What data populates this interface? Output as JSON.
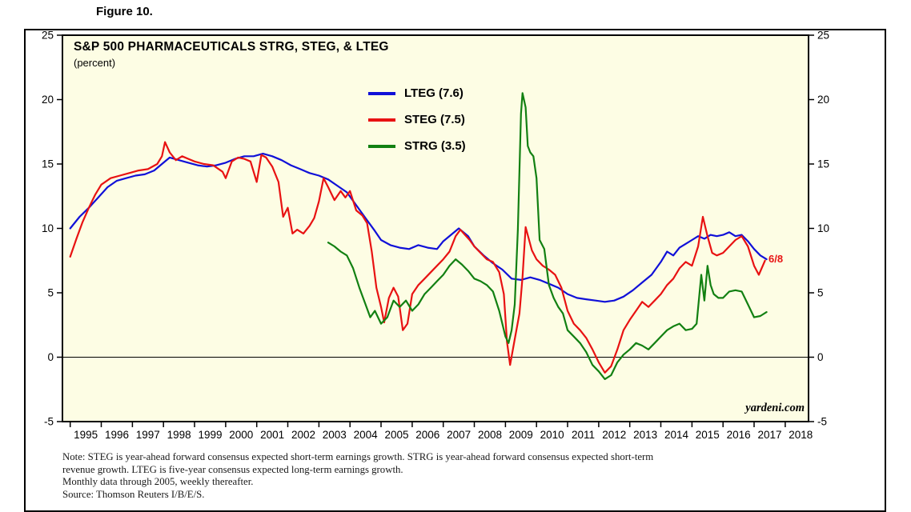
{
  "figure_label": "Figure 10.",
  "chart": {
    "title": "S&P 500 PHARMACEUTICALS STRG, STEG, & LTEG",
    "subtitle": "(percent)",
    "annotation": "6/8",
    "watermark": "yardeni.com"
  },
  "notes": {
    "lines": [
      "Note: STEG is year-ahead forward consensus expected short-term earnings growth. STRG is year-ahead forward consensus expected short-term",
      "revenue growth. LTEG is five-year consensus expected long-term earnings growth.",
      "Monthly data through 2005, weekly thereafter.",
      "Source: Thomson Reuters I/B/E/S."
    ]
  },
  "chart_data": {
    "type": "line",
    "title": "S&P 500 PHARMACEUTICALS STRG, STEG, & LTEG",
    "xlabel": "",
    "ylabel": "percent",
    "ylim": [
      -5,
      25
    ],
    "ytick_step": 5,
    "xlim": [
      1994.75,
      2018.75
    ],
    "xticks_years": [
      1995,
      1996,
      1997,
      1998,
      1999,
      2000,
      2001,
      2002,
      2003,
      2004,
      2005,
      2006,
      2007,
      2008,
      2009,
      2010,
      2011,
      2012,
      2013,
      2014,
      2015,
      2016,
      2017,
      2018
    ],
    "grid": false,
    "zero_line": true,
    "plot_bg": "#FDFDE4",
    "legend_position": "top-center-inside",
    "series": [
      {
        "id": "lteg",
        "name": "LTEG (7.6)",
        "color": "#1010D8",
        "last_value": 7.6,
        "points": [
          [
            1995.0,
            10.0
          ],
          [
            1995.3,
            10.9
          ],
          [
            1995.6,
            11.6
          ],
          [
            1995.9,
            12.4
          ],
          [
            1996.2,
            13.2
          ],
          [
            1996.5,
            13.7
          ],
          [
            1996.8,
            13.9
          ],
          [
            1997.1,
            14.1
          ],
          [
            1997.4,
            14.2
          ],
          [
            1997.7,
            14.5
          ],
          [
            1998.0,
            15.1
          ],
          [
            1998.2,
            15.5
          ],
          [
            1998.5,
            15.3
          ],
          [
            1998.8,
            15.1
          ],
          [
            1999.1,
            14.9
          ],
          [
            1999.4,
            14.8
          ],
          [
            1999.7,
            14.9
          ],
          [
            2000.0,
            15.1
          ],
          [
            2000.3,
            15.4
          ],
          [
            2000.6,
            15.6
          ],
          [
            2000.9,
            15.6
          ],
          [
            2001.2,
            15.8
          ],
          [
            2001.5,
            15.6
          ],
          [
            2001.8,
            15.3
          ],
          [
            2002.1,
            14.9
          ],
          [
            2002.4,
            14.6
          ],
          [
            2002.7,
            14.3
          ],
          [
            2003.0,
            14.1
          ],
          [
            2003.3,
            13.8
          ],
          [
            2003.6,
            13.3
          ],
          [
            2003.9,
            12.8
          ],
          [
            2004.2,
            11.8
          ],
          [
            2004.5,
            10.8
          ],
          [
            2004.8,
            9.8
          ],
          [
            2005.0,
            9.1
          ],
          [
            2005.3,
            8.7
          ],
          [
            2005.6,
            8.5
          ],
          [
            2005.9,
            8.4
          ],
          [
            2006.2,
            8.7
          ],
          [
            2006.5,
            8.5
          ],
          [
            2006.8,
            8.4
          ],
          [
            2007.0,
            9.0
          ],
          [
            2007.3,
            9.6
          ],
          [
            2007.5,
            10.0
          ],
          [
            2007.8,
            9.4
          ],
          [
            2008.0,
            8.6
          ],
          [
            2008.3,
            7.9
          ],
          [
            2008.6,
            7.3
          ],
          [
            2008.9,
            6.8
          ],
          [
            2009.2,
            6.1
          ],
          [
            2009.5,
            6.0
          ],
          [
            2009.8,
            6.2
          ],
          [
            2010.1,
            6.0
          ],
          [
            2010.4,
            5.7
          ],
          [
            2010.7,
            5.4
          ],
          [
            2011.0,
            4.9
          ],
          [
            2011.3,
            4.6
          ],
          [
            2011.6,
            4.5
          ],
          [
            2011.9,
            4.4
          ],
          [
            2012.2,
            4.3
          ],
          [
            2012.5,
            4.4
          ],
          [
            2012.8,
            4.7
          ],
          [
            2013.1,
            5.2
          ],
          [
            2013.4,
            5.8
          ],
          [
            2013.7,
            6.4
          ],
          [
            2014.0,
            7.4
          ],
          [
            2014.2,
            8.2
          ],
          [
            2014.4,
            7.9
          ],
          [
            2014.6,
            8.5
          ],
          [
            2014.8,
            8.8
          ],
          [
            2015.0,
            9.1
          ],
          [
            2015.2,
            9.4
          ],
          [
            2015.4,
            9.2
          ],
          [
            2015.6,
            9.5
          ],
          [
            2015.8,
            9.4
          ],
          [
            2016.0,
            9.5
          ],
          [
            2016.2,
            9.7
          ],
          [
            2016.4,
            9.4
          ],
          [
            2016.6,
            9.5
          ],
          [
            2016.8,
            9.0
          ],
          [
            2017.0,
            8.4
          ],
          [
            2017.2,
            7.9
          ],
          [
            2017.4,
            7.6
          ]
        ]
      },
      {
        "id": "steg",
        "name": "STEG (7.5)",
        "color": "#E81212",
        "last_value": 7.5,
        "points": [
          [
            1995.0,
            7.8
          ],
          [
            1995.2,
            9.2
          ],
          [
            1995.4,
            10.5
          ],
          [
            1995.6,
            11.6
          ],
          [
            1995.8,
            12.6
          ],
          [
            1996.0,
            13.4
          ],
          [
            1996.3,
            13.9
          ],
          [
            1996.6,
            14.1
          ],
          [
            1996.9,
            14.3
          ],
          [
            1997.2,
            14.5
          ],
          [
            1997.5,
            14.6
          ],
          [
            1997.8,
            15.0
          ],
          [
            1997.95,
            15.6
          ],
          [
            1998.05,
            16.7
          ],
          [
            1998.2,
            15.9
          ],
          [
            1998.4,
            15.3
          ],
          [
            1998.6,
            15.6
          ],
          [
            1998.8,
            15.4
          ],
          [
            1999.0,
            15.2
          ],
          [
            1999.3,
            15.0
          ],
          [
            1999.6,
            14.9
          ],
          [
            1999.9,
            14.4
          ],
          [
            2000.0,
            13.9
          ],
          [
            2000.2,
            15.2
          ],
          [
            2000.4,
            15.5
          ],
          [
            2000.6,
            15.4
          ],
          [
            2000.8,
            15.2
          ],
          [
            2001.0,
            13.6
          ],
          [
            2001.15,
            15.7
          ],
          [
            2001.3,
            15.5
          ],
          [
            2001.5,
            14.8
          ],
          [
            2001.7,
            13.6
          ],
          [
            2001.85,
            10.9
          ],
          [
            2002.0,
            11.6
          ],
          [
            2002.15,
            9.6
          ],
          [
            2002.3,
            9.9
          ],
          [
            2002.5,
            9.6
          ],
          [
            2002.7,
            10.2
          ],
          [
            2002.85,
            10.8
          ],
          [
            2003.0,
            12.1
          ],
          [
            2003.15,
            13.9
          ],
          [
            2003.3,
            13.2
          ],
          [
            2003.5,
            12.2
          ],
          [
            2003.7,
            12.9
          ],
          [
            2003.85,
            12.4
          ],
          [
            2004.0,
            12.9
          ],
          [
            2004.2,
            11.4
          ],
          [
            2004.4,
            11.0
          ],
          [
            2004.55,
            10.4
          ],
          [
            2004.7,
            8.2
          ],
          [
            2004.85,
            5.4
          ],
          [
            2005.0,
            3.9
          ],
          [
            2005.1,
            2.7
          ],
          [
            2005.25,
            4.6
          ],
          [
            2005.4,
            5.4
          ],
          [
            2005.55,
            4.7
          ],
          [
            2005.7,
            2.1
          ],
          [
            2005.85,
            2.6
          ],
          [
            2006.0,
            4.9
          ],
          [
            2006.2,
            5.6
          ],
          [
            2006.4,
            6.1
          ],
          [
            2006.6,
            6.6
          ],
          [
            2006.8,
            7.1
          ],
          [
            2007.0,
            7.6
          ],
          [
            2007.2,
            8.2
          ],
          [
            2007.4,
            9.4
          ],
          [
            2007.55,
            9.9
          ],
          [
            2007.7,
            9.5
          ],
          [
            2007.85,
            9.1
          ],
          [
            2008.0,
            8.6
          ],
          [
            2008.2,
            8.1
          ],
          [
            2008.4,
            7.6
          ],
          [
            2008.6,
            7.4
          ],
          [
            2008.8,
            6.6
          ],
          [
            2008.95,
            4.9
          ],
          [
            2009.05,
            1.2
          ],
          [
            2009.15,
            -0.6
          ],
          [
            2009.3,
            1.4
          ],
          [
            2009.45,
            3.4
          ],
          [
            2009.55,
            6.2
          ],
          [
            2009.65,
            10.1
          ],
          [
            2009.75,
            9.2
          ],
          [
            2009.85,
            8.3
          ],
          [
            2010.0,
            7.6
          ],
          [
            2010.2,
            7.1
          ],
          [
            2010.4,
            6.8
          ],
          [
            2010.6,
            6.4
          ],
          [
            2010.8,
            5.4
          ],
          [
            2011.0,
            3.6
          ],
          [
            2011.2,
            2.6
          ],
          [
            2011.4,
            2.1
          ],
          [
            2011.6,
            1.5
          ],
          [
            2011.8,
            0.6
          ],
          [
            2012.0,
            -0.4
          ],
          [
            2012.2,
            -1.2
          ],
          [
            2012.4,
            -0.7
          ],
          [
            2012.6,
            0.6
          ],
          [
            2012.8,
            2.1
          ],
          [
            2013.0,
            2.9
          ],
          [
            2013.2,
            3.6
          ],
          [
            2013.4,
            4.3
          ],
          [
            2013.6,
            3.9
          ],
          [
            2013.8,
            4.4
          ],
          [
            2014.0,
            4.9
          ],
          [
            2014.2,
            5.6
          ],
          [
            2014.4,
            6.1
          ],
          [
            2014.6,
            6.9
          ],
          [
            2014.8,
            7.4
          ],
          [
            2015.0,
            7.1
          ],
          [
            2015.2,
            8.6
          ],
          [
            2015.35,
            10.9
          ],
          [
            2015.5,
            9.4
          ],
          [
            2015.65,
            8.1
          ],
          [
            2015.8,
            7.9
          ],
          [
            2016.0,
            8.1
          ],
          [
            2016.2,
            8.6
          ],
          [
            2016.4,
            9.1
          ],
          [
            2016.6,
            9.4
          ],
          [
            2016.8,
            8.6
          ],
          [
            2017.0,
            7.1
          ],
          [
            2017.15,
            6.4
          ],
          [
            2017.35,
            7.5
          ]
        ]
      },
      {
        "id": "strg",
        "name": "STRG (3.5)",
        "color": "#128012",
        "last_value": 3.5,
        "points": [
          [
            2003.3,
            8.9
          ],
          [
            2003.5,
            8.6
          ],
          [
            2003.7,
            8.2
          ],
          [
            2003.9,
            7.9
          ],
          [
            2004.1,
            6.9
          ],
          [
            2004.3,
            5.4
          ],
          [
            2004.5,
            4.1
          ],
          [
            2004.65,
            3.1
          ],
          [
            2004.8,
            3.6
          ],
          [
            2005.0,
            2.6
          ],
          [
            2005.2,
            3.1
          ],
          [
            2005.4,
            4.4
          ],
          [
            2005.6,
            3.9
          ],
          [
            2005.8,
            4.4
          ],
          [
            2006.0,
            3.6
          ],
          [
            2006.2,
            4.1
          ],
          [
            2006.4,
            4.9
          ],
          [
            2006.6,
            5.4
          ],
          [
            2006.8,
            5.9
          ],
          [
            2007.0,
            6.4
          ],
          [
            2007.2,
            7.1
          ],
          [
            2007.4,
            7.6
          ],
          [
            2007.6,
            7.2
          ],
          [
            2007.8,
            6.7
          ],
          [
            2008.0,
            6.1
          ],
          [
            2008.2,
            5.9
          ],
          [
            2008.4,
            5.6
          ],
          [
            2008.6,
            5.1
          ],
          [
            2008.8,
            3.6
          ],
          [
            2009.0,
            1.6
          ],
          [
            2009.1,
            1.1
          ],
          [
            2009.2,
            2.1
          ],
          [
            2009.3,
            4.1
          ],
          [
            2009.4,
            9.9
          ],
          [
            2009.5,
            18.9
          ],
          [
            2009.55,
            20.5
          ],
          [
            2009.65,
            19.4
          ],
          [
            2009.72,
            16.4
          ],
          [
            2009.8,
            15.9
          ],
          [
            2009.9,
            15.6
          ],
          [
            2010.0,
            13.9
          ],
          [
            2010.1,
            9.1
          ],
          [
            2010.25,
            8.4
          ],
          [
            2010.4,
            5.6
          ],
          [
            2010.55,
            4.6
          ],
          [
            2010.7,
            3.9
          ],
          [
            2010.85,
            3.4
          ],
          [
            2011.0,
            2.1
          ],
          [
            2011.2,
            1.6
          ],
          [
            2011.4,
            1.1
          ],
          [
            2011.6,
            0.4
          ],
          [
            2011.8,
            -0.6
          ],
          [
            2012.0,
            -1.1
          ],
          [
            2012.2,
            -1.7
          ],
          [
            2012.4,
            -1.4
          ],
          [
            2012.6,
            -0.4
          ],
          [
            2012.8,
            0.2
          ],
          [
            2013.0,
            0.6
          ],
          [
            2013.2,
            1.1
          ],
          [
            2013.4,
            0.9
          ],
          [
            2013.6,
            0.6
          ],
          [
            2013.8,
            1.1
          ],
          [
            2014.0,
            1.6
          ],
          [
            2014.2,
            2.1
          ],
          [
            2014.4,
            2.4
          ],
          [
            2014.6,
            2.6
          ],
          [
            2014.8,
            2.1
          ],
          [
            2015.0,
            2.2
          ],
          [
            2015.15,
            2.6
          ],
          [
            2015.3,
            6.4
          ],
          [
            2015.4,
            4.4
          ],
          [
            2015.5,
            7.1
          ],
          [
            2015.6,
            5.6
          ],
          [
            2015.7,
            4.9
          ],
          [
            2015.85,
            4.6
          ],
          [
            2016.0,
            4.6
          ],
          [
            2016.2,
            5.1
          ],
          [
            2016.4,
            5.2
          ],
          [
            2016.6,
            5.1
          ],
          [
            2016.8,
            4.1
          ],
          [
            2017.0,
            3.1
          ],
          [
            2017.2,
            3.2
          ],
          [
            2017.4,
            3.5
          ]
        ]
      }
    ]
  }
}
